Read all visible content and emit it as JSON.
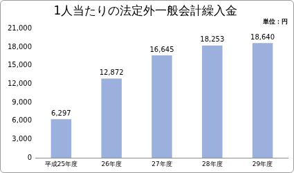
{
  "chart_data": {
    "type": "bar",
    "title": "1人当たりの法定外一般会計繰入金",
    "subtitle": "単位：円",
    "categories": [
      "平成25年度",
      "26年度",
      "27年度",
      "28年度",
      "29年度"
    ],
    "values": [
      6297,
      12872,
      16645,
      18253,
      18640
    ],
    "value_labels": [
      "6,297",
      "12,872",
      "16,645",
      "18,253",
      "18,640"
    ],
    "data_labels": true,
    "color": "#9bb0dc",
    "ylim": [
      0,
      21000
    ],
    "yticks": [
      0,
      {
        "value": 3000,
        "label": "3,000"
      },
      {
        "value": 6000,
        "label": "6,000"
      },
      {
        "value": 9000,
        "label": "9,000"
      },
      {
        "value": 12000,
        "label": "12,000"
      },
      {
        "value": 15000,
        "label": "15,000"
      },
      {
        "value": 18000,
        "label": "18,000"
      },
      {
        "value": 21000,
        "label": "21,000"
      }
    ],
    "grid": false
  }
}
